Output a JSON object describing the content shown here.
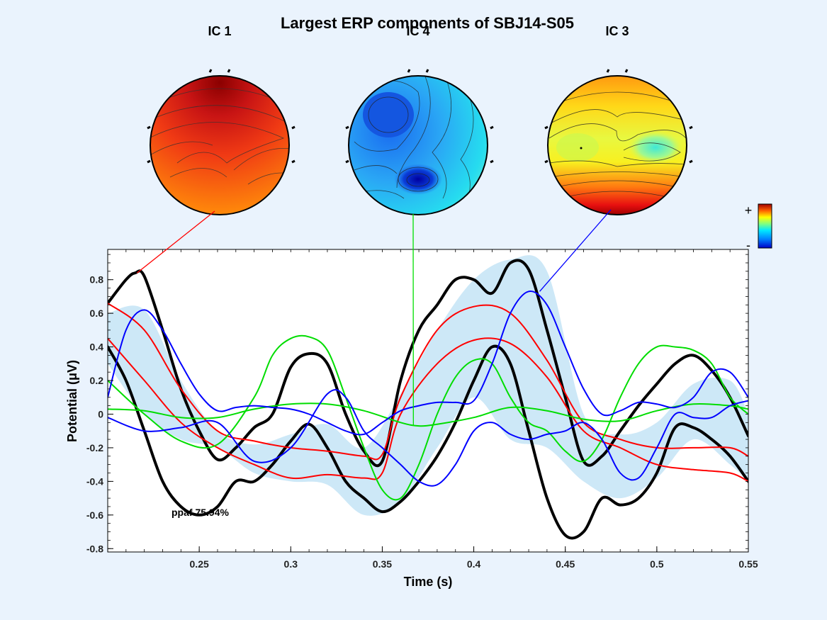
{
  "chart_data": {
    "type": "line",
    "title": "Largest ERP components of SBJ14-S05",
    "xlabel": "Time (s)",
    "ylabel": "Potential (μV)",
    "xlim": [
      0.2,
      0.55
    ],
    "ylim": [
      -0.82,
      0.98
    ],
    "x_ticks": [
      0.25,
      0.3,
      0.35,
      0.4,
      0.45,
      0.5,
      0.55
    ],
    "y_ticks": [
      -0.8,
      -0.6,
      -0.4,
      -0.2,
      0,
      0.2,
      0.4,
      0.6,
      0.8
    ],
    "annotation": "ppaf 75.94%",
    "colorbar": {
      "plus": "+",
      "minus": "-"
    },
    "components": [
      {
        "label": "IC 1",
        "color": "#ff0000",
        "pointer_time": 0.216
      },
      {
        "label": "IC 4",
        "color": "#00e000",
        "pointer_time": 0.367
      },
      {
        "label": "IC 3",
        "color": "#0000ff",
        "pointer_time": 0.436
      }
    ],
    "envelope_band": {
      "color": "#cde8f7",
      "x": [
        0.2,
        0.22,
        0.24,
        0.26,
        0.28,
        0.3,
        0.32,
        0.34,
        0.36,
        0.38,
        0.4,
        0.42,
        0.44,
        0.46,
        0.48,
        0.5,
        0.52,
        0.54,
        0.55
      ],
      "upper": [
        0.6,
        0.62,
        0.2,
        -0.1,
        -0.18,
        -0.12,
        -0.06,
        -0.2,
        0.12,
        0.5,
        0.8,
        0.92,
        0.85,
        0.0,
        -0.12,
        -0.05,
        0.18,
        0.2,
        0.0
      ],
      "lower": [
        0.3,
        0.0,
        -0.15,
        -0.2,
        -0.35,
        -0.4,
        -0.42,
        -0.6,
        -0.52,
        -0.2,
        0.1,
        -0.15,
        -0.2,
        -0.4,
        -0.5,
        -0.38,
        -0.15,
        -0.3,
        -0.4
      ]
    },
    "series": [
      {
        "color": "#000000",
        "width": 4,
        "x": [
          0.2,
          0.21,
          0.215,
          0.22,
          0.23,
          0.24,
          0.25,
          0.26,
          0.27,
          0.28,
          0.29,
          0.3,
          0.31,
          0.32,
          0.33,
          0.34,
          0.35,
          0.36,
          0.37,
          0.38,
          0.39,
          0.4,
          0.41,
          0.42,
          0.43,
          0.44,
          0.45,
          0.46,
          0.47,
          0.48,
          0.49,
          0.5,
          0.51,
          0.52,
          0.53,
          0.54,
          0.55
        ],
        "y": [
          0.66,
          0.8,
          0.84,
          0.82,
          0.5,
          0.15,
          -0.1,
          -0.27,
          -0.2,
          -0.08,
          0.0,
          0.28,
          0.36,
          0.3,
          0.0,
          -0.22,
          -0.28,
          0.2,
          0.5,
          0.65,
          0.8,
          0.8,
          0.72,
          0.9,
          0.86,
          0.5,
          0.1,
          -0.28,
          -0.25,
          -0.1,
          0.05,
          0.18,
          0.3,
          0.35,
          0.26,
          0.1,
          -0.13
        ]
      },
      {
        "color": "#000000",
        "width": 4,
        "x": [
          0.2,
          0.21,
          0.22,
          0.23,
          0.24,
          0.25,
          0.26,
          0.27,
          0.28,
          0.29,
          0.3,
          0.31,
          0.32,
          0.33,
          0.34,
          0.35,
          0.36,
          0.37,
          0.38,
          0.39,
          0.4,
          0.41,
          0.42,
          0.43,
          0.44,
          0.45,
          0.46,
          0.47,
          0.48,
          0.49,
          0.5,
          0.51,
          0.52,
          0.53,
          0.54,
          0.55
        ],
        "y": [
          0.4,
          0.2,
          -0.1,
          -0.4,
          -0.55,
          -0.6,
          -0.55,
          -0.4,
          -0.4,
          -0.3,
          -0.16,
          -0.06,
          -0.2,
          -0.4,
          -0.5,
          -0.58,
          -0.52,
          -0.4,
          -0.25,
          -0.05,
          0.2,
          0.4,
          0.3,
          -0.1,
          -0.5,
          -0.72,
          -0.7,
          -0.5,
          -0.54,
          -0.5,
          -0.35,
          -0.08,
          -0.08,
          -0.15,
          -0.25,
          -0.4
        ]
      },
      {
        "color": "#ff0000",
        "width": 2,
        "x": [
          0.2,
          0.22,
          0.24,
          0.26,
          0.28,
          0.3,
          0.32,
          0.34,
          0.35,
          0.36,
          0.38,
          0.4,
          0.42,
          0.44,
          0.46,
          0.48,
          0.5,
          0.52,
          0.54,
          0.55
        ],
        "y": [
          0.66,
          0.5,
          0.15,
          -0.1,
          -0.16,
          -0.2,
          -0.22,
          -0.25,
          -0.24,
          0.1,
          0.5,
          0.64,
          0.6,
          0.32,
          -0.05,
          -0.15,
          -0.2,
          -0.2,
          -0.2,
          -0.25
        ]
      },
      {
        "color": "#ff0000",
        "width": 2,
        "x": [
          0.2,
          0.22,
          0.24,
          0.26,
          0.28,
          0.3,
          0.32,
          0.34,
          0.35,
          0.36,
          0.38,
          0.4,
          0.42,
          0.44,
          0.46,
          0.48,
          0.5,
          0.52,
          0.54,
          0.55
        ],
        "y": [
          0.45,
          0.2,
          -0.05,
          -0.2,
          -0.3,
          -0.38,
          -0.36,
          -0.38,
          -0.35,
          0.0,
          0.3,
          0.44,
          0.42,
          0.22,
          -0.1,
          -0.2,
          -0.3,
          -0.33,
          -0.35,
          -0.4
        ]
      },
      {
        "color": "#00dd00",
        "width": 2,
        "x": [
          0.2,
          0.22,
          0.24,
          0.26,
          0.28,
          0.29,
          0.3,
          0.31,
          0.32,
          0.33,
          0.34,
          0.35,
          0.36,
          0.37,
          0.38,
          0.39,
          0.4,
          0.41,
          0.42,
          0.43,
          0.44,
          0.45,
          0.46,
          0.47,
          0.48,
          0.49,
          0.5,
          0.51,
          0.52,
          0.53,
          0.54,
          0.55
        ],
        "y": [
          0.2,
          0.0,
          -0.16,
          -0.18,
          0.1,
          0.35,
          0.45,
          0.46,
          0.38,
          0.1,
          -0.2,
          -0.45,
          -0.5,
          -0.3,
          0.0,
          0.22,
          0.32,
          0.3,
          0.1,
          -0.05,
          -0.1,
          -0.22,
          -0.28,
          -0.15,
          0.1,
          0.3,
          0.4,
          0.4,
          0.38,
          0.3,
          0.1,
          0.0
        ]
      },
      {
        "color": "#00dd00",
        "width": 2,
        "x": [
          0.2,
          0.22,
          0.24,
          0.26,
          0.28,
          0.3,
          0.32,
          0.34,
          0.36,
          0.37,
          0.38,
          0.4,
          0.42,
          0.44,
          0.46,
          0.48,
          0.5,
          0.52,
          0.54,
          0.55
        ],
        "y": [
          0.03,
          0.02,
          -0.02,
          -0.02,
          0.03,
          0.06,
          0.06,
          0.02,
          -0.05,
          -0.07,
          -0.06,
          -0.02,
          0.04,
          0.02,
          -0.03,
          -0.04,
          0.02,
          0.06,
          0.05,
          0.03
        ]
      },
      {
        "color": "#0000ff",
        "width": 2,
        "x": [
          0.2,
          0.21,
          0.22,
          0.23,
          0.24,
          0.25,
          0.26,
          0.27,
          0.28,
          0.29,
          0.3,
          0.31,
          0.32,
          0.33,
          0.34,
          0.35,
          0.36,
          0.37,
          0.38,
          0.39,
          0.4,
          0.41,
          0.42,
          0.43,
          0.44,
          0.45,
          0.46,
          0.47,
          0.48,
          0.49,
          0.5,
          0.51,
          0.52,
          0.53,
          0.54,
          0.55
        ],
        "y": [
          0.1,
          0.5,
          0.62,
          0.5,
          0.3,
          0.12,
          0.02,
          0.04,
          0.05,
          0.04,
          0.03,
          0.0,
          -0.05,
          -0.1,
          -0.12,
          -0.05,
          0.02,
          0.05,
          0.07,
          0.07,
          0.08,
          0.3,
          0.6,
          0.73,
          0.65,
          0.4,
          0.15,
          0.0,
          0.02,
          0.07,
          0.06,
          0.04,
          0.1,
          0.25,
          0.25,
          0.1
        ]
      },
      {
        "color": "#0000ff",
        "width": 2,
        "x": [
          0.2,
          0.22,
          0.24,
          0.26,
          0.28,
          0.3,
          0.32,
          0.33,
          0.34,
          0.35,
          0.36,
          0.37,
          0.38,
          0.39,
          0.4,
          0.41,
          0.42,
          0.43,
          0.44,
          0.45,
          0.46,
          0.47,
          0.48,
          0.49,
          0.5,
          0.51,
          0.52,
          0.53,
          0.54,
          0.55
        ],
        "y": [
          -0.02,
          -0.1,
          -0.08,
          -0.05,
          -0.28,
          -0.2,
          0.12,
          0.1,
          -0.1,
          -0.2,
          -0.3,
          -0.4,
          -0.42,
          -0.3,
          -0.1,
          -0.05,
          -0.12,
          -0.15,
          -0.12,
          -0.1,
          -0.05,
          -0.15,
          -0.35,
          -0.38,
          -0.2,
          0.0,
          -0.02,
          -0.02,
          0.05,
          0.08
        ]
      }
    ]
  }
}
